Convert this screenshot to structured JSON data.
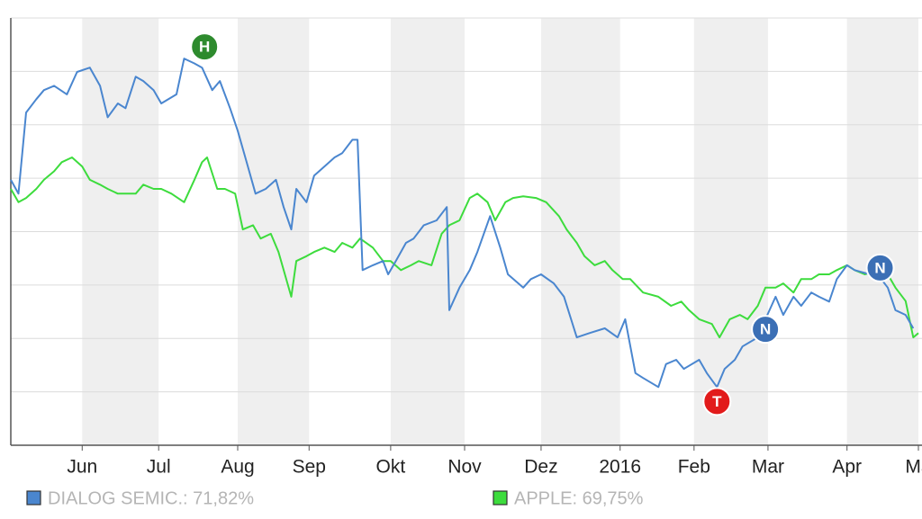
{
  "chart_data": {
    "type": "line",
    "xlim": [
      0,
      356
    ],
    "ylim": [
      0,
      80
    ],
    "yticks": [
      0,
      10,
      20,
      30,
      40,
      50,
      60,
      70,
      80
    ],
    "xticks": [
      {
        "value": 28,
        "label": "Jun"
      },
      {
        "value": 58,
        "label": "Jul"
      },
      {
        "value": 89,
        "label": "Aug"
      },
      {
        "value": 117,
        "label": "Sep"
      },
      {
        "value": 149,
        "label": "Okt"
      },
      {
        "value": 178,
        "label": "Nov"
      },
      {
        "value": 208,
        "label": "Dez"
      },
      {
        "value": 239,
        "label": "2016"
      },
      {
        "value": 268,
        "label": "Feb"
      },
      {
        "value": 297,
        "label": "Mar"
      },
      {
        "value": 328,
        "label": "Apr"
      },
      {
        "value": 356,
        "label": "Ma"
      }
    ],
    "grid": true,
    "series": [
      {
        "name": "DIALOG SEMIC.: 71,82%",
        "color": "#4a86cf",
        "x": [
          0,
          3,
          6,
          10,
          13,
          17,
          22,
          26,
          31,
          35,
          38,
          42,
          45,
          49,
          52,
          56,
          59,
          65,
          68,
          72,
          75,
          79,
          82,
          86,
          89,
          93,
          96,
          100,
          104,
          107,
          110,
          112,
          116,
          119,
          123,
          127,
          130,
          134,
          136,
          138,
          142,
          146,
          148,
          151,
          155,
          158,
          162,
          167,
          171,
          172,
          176,
          180,
          183,
          188,
          192,
          195,
          201,
          204,
          208,
          213,
          217,
          222,
          227,
          233,
          238,
          241,
          245,
          248,
          254,
          257,
          261,
          264,
          270,
          273,
          277,
          280,
          284,
          287,
          293,
          296,
          300,
          303,
          307,
          310,
          314,
          317,
          321,
          324,
          328,
          331,
          337,
          340,
          344,
          347,
          351,
          354
        ],
        "values": [
          49.7,
          47.1,
          62.3,
          64.8,
          66.5,
          67.3,
          65.7,
          69.9,
          70.7,
          67.3,
          61.4,
          64.0,
          63.1,
          69.0,
          68.2,
          66.5,
          64.0,
          65.7,
          72.4,
          71.5,
          70.7,
          66.5,
          68.2,
          63.1,
          58.9,
          52.2,
          47.1,
          48.0,
          49.7,
          44.6,
          40.4,
          48.0,
          45.5,
          50.5,
          52.2,
          53.9,
          54.7,
          57.2,
          57.2,
          32.8,
          33.7,
          34.5,
          32.0,
          34.5,
          37.9,
          38.7,
          41.2,
          42.1,
          44.6,
          25.3,
          29.5,
          32.8,
          36.2,
          42.9,
          37.0,
          32.0,
          29.5,
          31.1,
          32.0,
          30.3,
          27.8,
          20.2,
          21.0,
          21.9,
          20.2,
          23.6,
          13.5,
          12.6,
          10.9,
          15.2,
          16.0,
          14.3,
          16.0,
          13.5,
          10.9,
          14.3,
          16.0,
          18.5,
          20.2,
          23.6,
          27.8,
          24.4,
          27.8,
          26.1,
          28.6,
          27.8,
          26.9,
          31.1,
          33.7,
          32.8,
          32.0,
          32.0,
          29.5,
          25.3,
          24.4,
          21.9
        ]
      },
      {
        "name": "APPLE: 69,75%",
        "color": "#3ddc3d",
        "x": [
          0,
          3,
          6,
          10,
          13,
          17,
          20,
          24,
          28,
          31,
          35,
          38,
          42,
          45,
          49,
          52,
          56,
          59,
          63,
          68,
          72,
          75,
          77,
          81,
          84,
          88,
          91,
          95,
          98,
          102,
          105,
          110,
          112,
          116,
          119,
          123,
          127,
          130,
          134,
          137,
          142,
          146,
          149,
          153,
          157,
          160,
          165,
          169,
          172,
          176,
          180,
          183,
          187,
          190,
          194,
          197,
          201,
          206,
          210,
          215,
          218,
          222,
          225,
          229,
          233,
          236,
          240,
          243,
          248,
          254,
          259,
          263,
          266,
          270,
          275,
          278,
          282,
          286,
          289,
          293,
          296,
          300,
          303,
          307,
          310,
          314,
          317,
          321,
          324,
          328,
          331,
          335,
          340,
          344,
          347,
          351,
          354,
          356
        ],
        "values": [
          48.0,
          45.5,
          46.3,
          48.0,
          49.7,
          51.3,
          53.0,
          53.9,
          52.2,
          49.7,
          48.8,
          48.0,
          47.1,
          47.1,
          47.1,
          48.8,
          48.0,
          48.0,
          47.1,
          45.5,
          49.7,
          53.0,
          53.9,
          48.0,
          48.0,
          47.1,
          40.4,
          41.2,
          38.7,
          39.6,
          36.2,
          27.8,
          34.5,
          35.4,
          36.2,
          37.0,
          36.2,
          37.9,
          37.0,
          38.7,
          37.0,
          34.5,
          34.5,
          32.8,
          33.7,
          34.5,
          33.7,
          39.6,
          41.2,
          42.1,
          46.3,
          47.1,
          45.5,
          42.1,
          45.5,
          46.3,
          46.6,
          46.3,
          45.5,
          42.9,
          40.4,
          37.9,
          35.4,
          33.7,
          34.5,
          32.8,
          31.1,
          31.1,
          28.6,
          27.8,
          26.1,
          26.9,
          25.3,
          23.6,
          22.7,
          20.2,
          23.6,
          24.4,
          23.6,
          26.1,
          29.5,
          29.5,
          30.3,
          28.6,
          31.1,
          31.1,
          32.0,
          32.0,
          32.8,
          33.7,
          32.8,
          32.0,
          32.8,
          32.0,
          29.5,
          27.0,
          20.2,
          21.0
        ]
      }
    ],
    "annotations": [
      {
        "label": "H",
        "x": 76,
        "y": 74.6,
        "color": "#2e8b2e"
      },
      {
        "label": "T",
        "x": 277,
        "y": 8.2,
        "color": "#e21b1b"
      },
      {
        "label": "N",
        "x": 296,
        "y": 21.7,
        "color": "#3b6fb5"
      },
      {
        "label": "N",
        "x": 341,
        "y": 33.2,
        "color": "#3b6fb5"
      }
    ]
  }
}
